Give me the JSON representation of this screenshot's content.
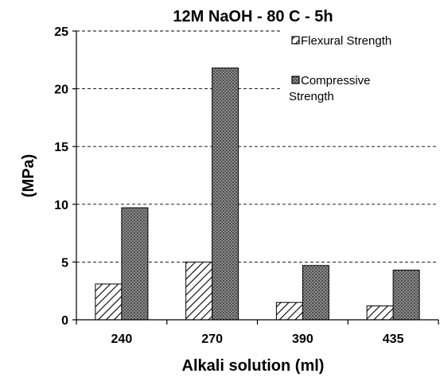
{
  "chart_data": {
    "type": "bar",
    "title": "12M NaOH - 80 C - 5h",
    "xlabel": "Alkali solution (ml)",
    "ylabel": "(MPa)",
    "categories": [
      "240",
      "270",
      "390",
      "435"
    ],
    "series": [
      {
        "name": "Flexural Strength",
        "values": [
          3.1,
          5.0,
          1.5,
          1.2
        ],
        "pattern": "diagonal-hatch"
      },
      {
        "name": "Compressive Strength",
        "values": [
          9.7,
          21.8,
          4.7,
          4.3
        ],
        "pattern": "dotted-gray"
      }
    ],
    "ylim": [
      0,
      25
    ],
    "yticks": [
      0,
      5,
      10,
      15,
      20,
      25
    ],
    "grid": true,
    "grid_style": "dashed",
    "legend_position": "top-right",
    "legend_lines": [
      [
        "Flexural Strength"
      ],
      [
        "Compressive",
        "Strength"
      ]
    ]
  }
}
